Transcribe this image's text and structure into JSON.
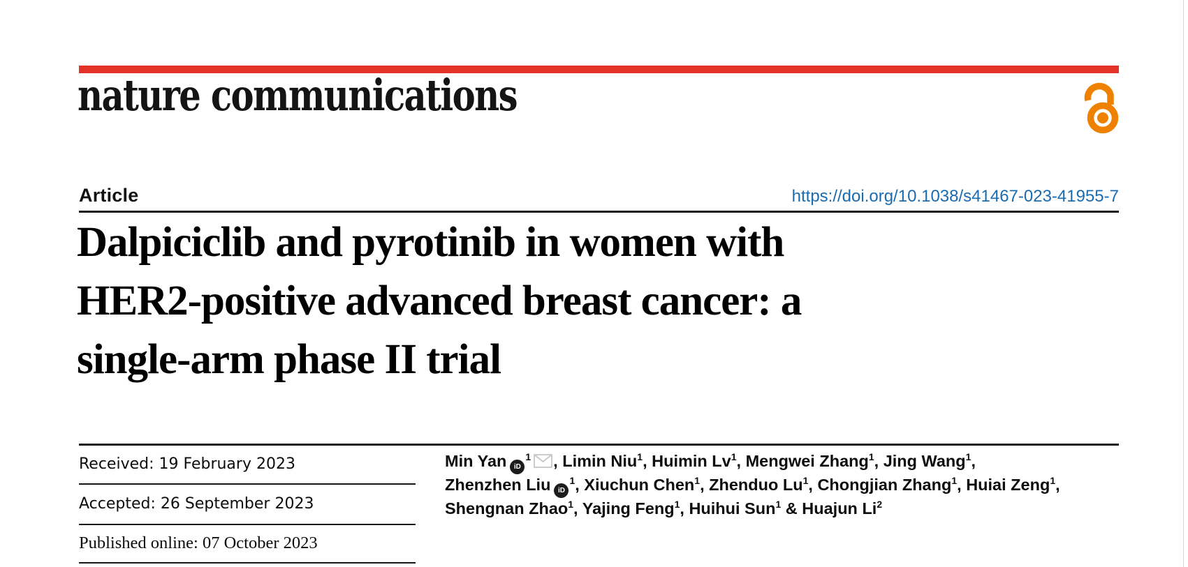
{
  "journal": {
    "wordmark": "nature communications",
    "bar_color": "#e53228",
    "open_access_color": "#ef8100"
  },
  "article": {
    "label": "Article",
    "doi": "https://doi.org/10.1038/s41467-023-41955-7",
    "doi_color": "#1a6cb0",
    "title_lines": [
      "Dalpiciclib and pyrotinib in women with",
      "HER2-positive advanced breast cancer: a",
      "single-arm phase II trial"
    ]
  },
  "dates": [
    {
      "text": "Received: 19 February 2023"
    },
    {
      "text": "Accepted: 26 September 2023"
    },
    {
      "text": "Published online: 07 October 2023"
    }
  ],
  "authors": {
    "lines": [
      [
        {
          "name": "Min Yan",
          "orcid": true,
          "sup": "1",
          "envelope": true,
          "sep": ", "
        },
        {
          "name": "Limin Niu",
          "sup": "1",
          "sep": ", "
        },
        {
          "name": "Huimin Lv",
          "sup": "1",
          "sep": ", "
        },
        {
          "name": "Mengwei Zhang",
          "sup": "1",
          "sep": ", "
        },
        {
          "name": "Jing Wang",
          "sup": "1",
          "sep": ","
        }
      ],
      [
        {
          "name": "Zhenzhen Liu",
          "orcid": true,
          "sup": "1",
          "sep": ", "
        },
        {
          "name": "Xiuchun Chen",
          "sup": "1",
          "sep": ", "
        },
        {
          "name": "Zhenduo Lu",
          "sup": "1",
          "sep": ", "
        },
        {
          "name": "Chongjian Zhang",
          "sup": "1",
          "sep": ", "
        },
        {
          "name": "Huiai Zeng",
          "sup": "1",
          "sep": ","
        }
      ],
      [
        {
          "name": "Shengnan Zhao",
          "sup": "1",
          "sep": ", "
        },
        {
          "name": "Yajing Feng",
          "sup": "1",
          "sep": ", "
        },
        {
          "name": "Huihui Sun",
          "sup": "1",
          "sep": " & "
        },
        {
          "name": "Huajun Li",
          "sup": "2",
          "sep": ""
        }
      ]
    ]
  }
}
